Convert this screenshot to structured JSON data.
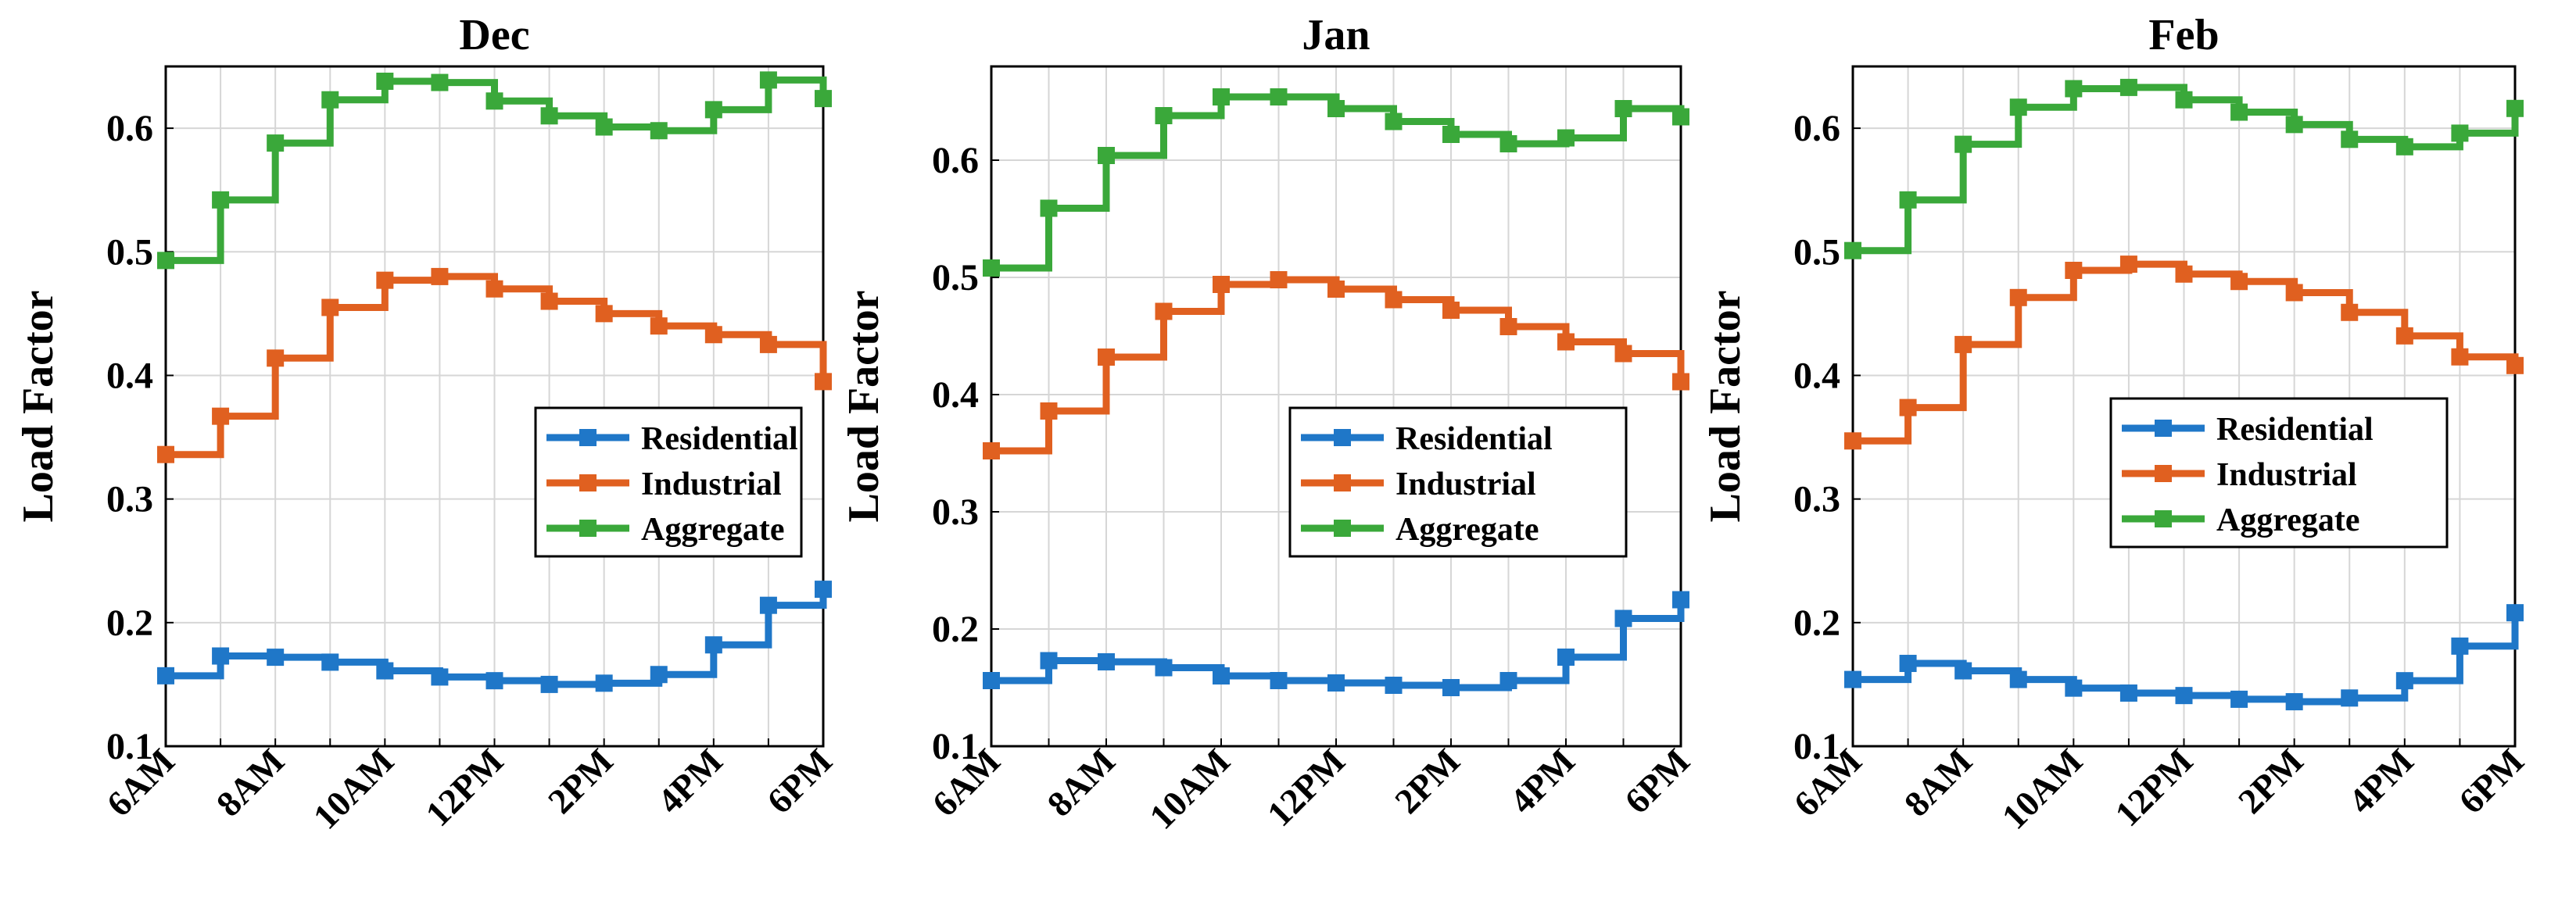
{
  "chart_data": [
    {
      "type": "line",
      "step": true,
      "title": "Dec",
      "xlabel": "",
      "ylabel": "Load Factor",
      "ylim": [
        0.1,
        0.65
      ],
      "yticks": [
        0.1,
        0.2,
        0.3,
        0.4,
        0.5,
        0.6
      ],
      "ytick_labels": [
        "0.1",
        "0.2",
        "0.3",
        "0.4",
        "0.5",
        "0.6"
      ],
      "xticks": [
        6,
        8,
        10,
        12,
        14,
        16,
        18
      ],
      "xtick_labels": [
        "6AM",
        "8AM",
        "10AM",
        "12PM",
        "2PM",
        "4PM",
        "6PM"
      ],
      "x": [
        6,
        7,
        8,
        9,
        10,
        11,
        12,
        13,
        14,
        15,
        16,
        17,
        18
      ],
      "grid": true,
      "legend": {
        "position": "center-right",
        "entries": [
          "Residential",
          "Industrial",
          "Aggregate"
        ]
      },
      "series": [
        {
          "name": "Residential",
          "color": "#1f77c8",
          "values": [
            0.157,
            0.173,
            0.172,
            0.168,
            0.161,
            0.156,
            0.153,
            0.15,
            0.151,
            0.158,
            0.182,
            0.214,
            0.227
          ]
        },
        {
          "name": "Industrial",
          "color": "#e06020",
          "values": [
            0.336,
            0.367,
            0.414,
            0.455,
            0.477,
            0.48,
            0.47,
            0.46,
            0.45,
            0.44,
            0.433,
            0.425,
            0.395
          ]
        },
        {
          "name": "Aggregate",
          "color": "#3aa83a",
          "values": [
            0.493,
            0.542,
            0.588,
            0.623,
            0.638,
            0.637,
            0.622,
            0.61,
            0.601,
            0.598,
            0.615,
            0.639,
            0.624
          ]
        }
      ]
    },
    {
      "type": "line",
      "step": true,
      "title": "Jan",
      "xlabel": "",
      "ylabel": "Load Factor",
      "ylim": [
        0.1,
        0.68
      ],
      "yticks": [
        0.1,
        0.2,
        0.3,
        0.4,
        0.5,
        0.6
      ],
      "ytick_labels": [
        "0.1",
        "0.2",
        "0.3",
        "0.4",
        "0.5",
        "0.6"
      ],
      "xticks": [
        6,
        8,
        10,
        12,
        14,
        16,
        18
      ],
      "xtick_labels": [
        "6AM",
        "8AM",
        "10AM",
        "12PM",
        "2PM",
        "4PM",
        "6PM"
      ],
      "x": [
        6,
        7,
        8,
        9,
        10,
        11,
        12,
        13,
        14,
        15,
        16,
        17,
        18
      ],
      "grid": true,
      "legend": {
        "position": "center-right",
        "entries": [
          "Residential",
          "Industrial",
          "Aggregate"
        ]
      },
      "series": [
        {
          "name": "Residential",
          "color": "#1f77c8",
          "values": [
            0.156,
            0.173,
            0.172,
            0.167,
            0.16,
            0.156,
            0.154,
            0.152,
            0.15,
            0.156,
            0.176,
            0.209,
            0.225
          ]
        },
        {
          "name": "Industrial",
          "color": "#e06020",
          "values": [
            0.352,
            0.386,
            0.432,
            0.471,
            0.494,
            0.498,
            0.49,
            0.481,
            0.472,
            0.458,
            0.445,
            0.435,
            0.411
          ]
        },
        {
          "name": "Aggregate",
          "color": "#3aa83a",
          "values": [
            0.508,
            0.559,
            0.604,
            0.638,
            0.654,
            0.654,
            0.644,
            0.633,
            0.622,
            0.614,
            0.619,
            0.644,
            0.637
          ]
        }
      ]
    },
    {
      "type": "line",
      "step": true,
      "title": "Feb",
      "xlabel": "",
      "ylabel": "Load Factor",
      "ylim": [
        0.1,
        0.65
      ],
      "yticks": [
        0.1,
        0.2,
        0.3,
        0.4,
        0.5,
        0.6
      ],
      "ytick_labels": [
        "0.1",
        "0.2",
        "0.3",
        "0.4",
        "0.5",
        "0.6"
      ],
      "xticks": [
        6,
        8,
        10,
        12,
        14,
        16,
        18
      ],
      "xtick_labels": [
        "6AM",
        "8AM",
        "10AM",
        "12PM",
        "2PM",
        "4PM",
        "6PM"
      ],
      "x": [
        6,
        7,
        8,
        9,
        10,
        11,
        12,
        13,
        14,
        15,
        16,
        17,
        18
      ],
      "grid": true,
      "legend": {
        "position": "center-right",
        "entries": [
          "Residential",
          "Industrial",
          "Aggregate"
        ]
      },
      "series": [
        {
          "name": "Residential",
          "color": "#1f77c8",
          "values": [
            0.154,
            0.167,
            0.161,
            0.154,
            0.147,
            0.143,
            0.141,
            0.138,
            0.136,
            0.139,
            0.153,
            0.181,
            0.208
          ]
        },
        {
          "name": "Industrial",
          "color": "#e06020",
          "values": [
            0.347,
            0.374,
            0.425,
            0.463,
            0.485,
            0.49,
            0.482,
            0.476,
            0.467,
            0.451,
            0.432,
            0.415,
            0.408
          ]
        },
        {
          "name": "Aggregate",
          "color": "#3aa83a",
          "values": [
            0.501,
            0.542,
            0.587,
            0.617,
            0.632,
            0.633,
            0.623,
            0.613,
            0.603,
            0.591,
            0.585,
            0.596,
            0.616
          ]
        }
      ]
    }
  ]
}
